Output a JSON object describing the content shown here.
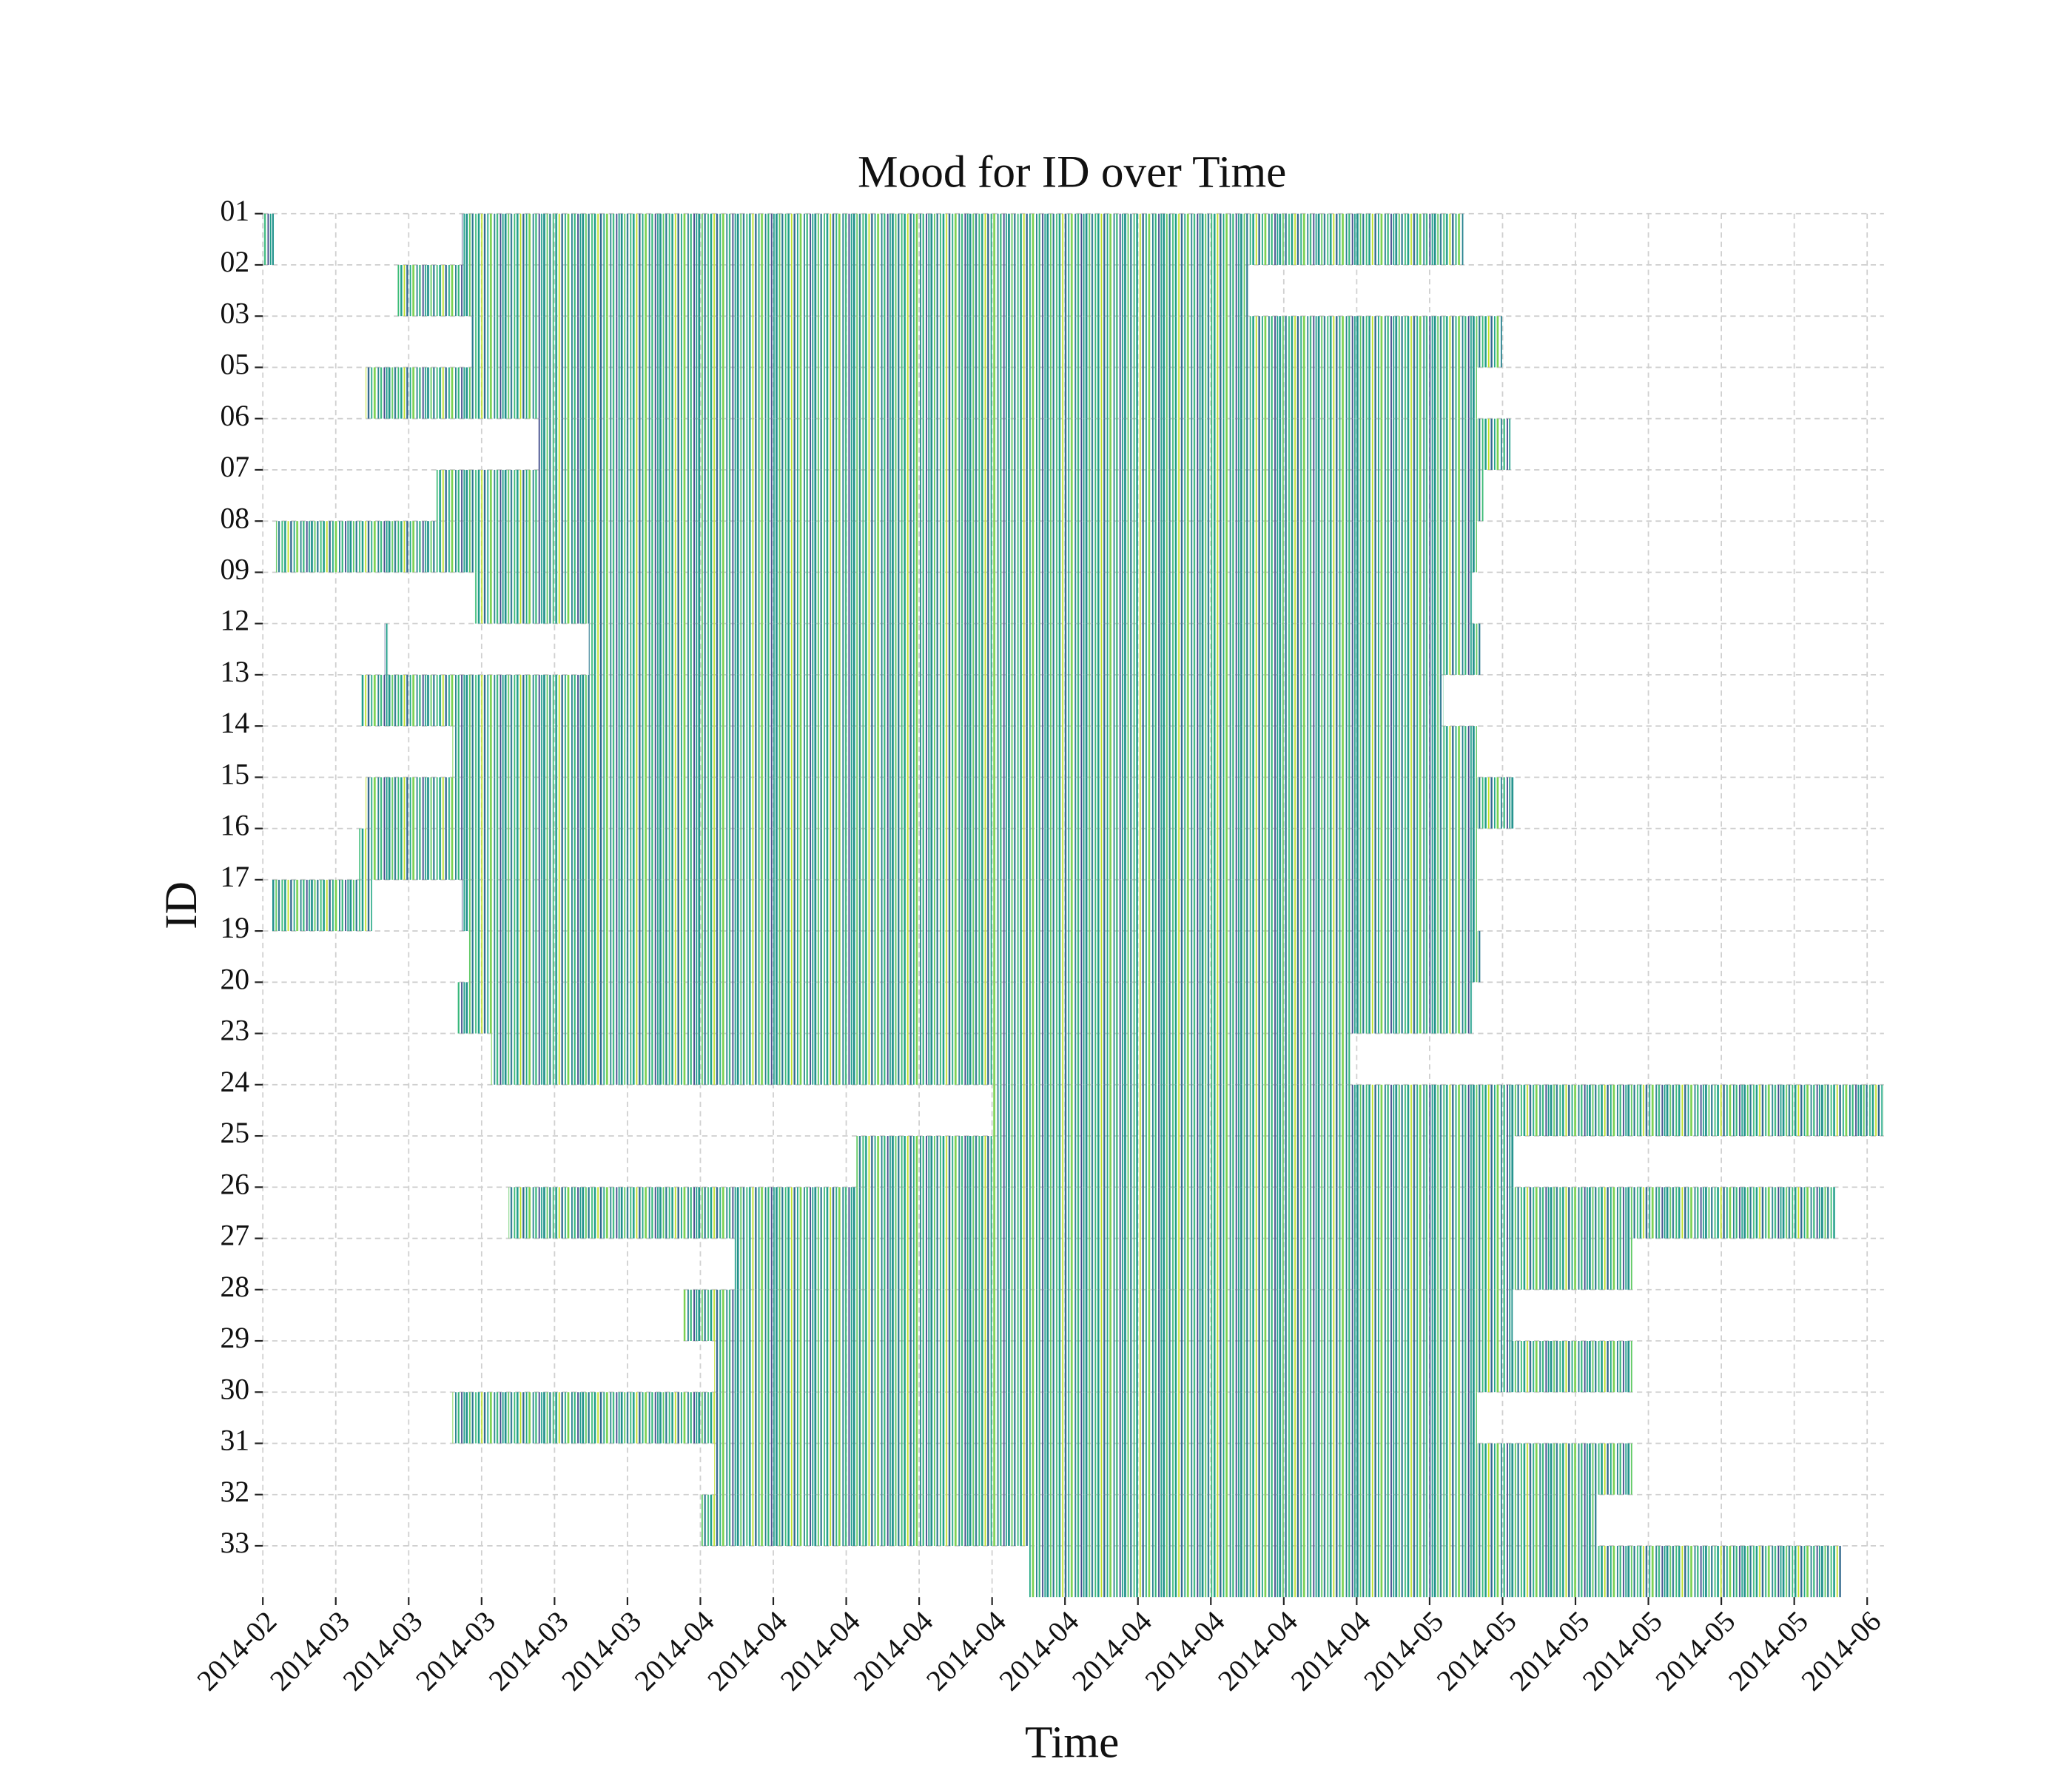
{
  "chart_data": {
    "type": "broken_barh",
    "title": "Mood for ID over Time",
    "xlabel": "Time",
    "ylabel": "ID",
    "grid": true,
    "colormap": "viridis",
    "xlim": [
      0,
      22.23
    ],
    "xticks": [
      {
        "value": 0,
        "label": "2014-02"
      },
      {
        "value": 1,
        "label": "2014-03"
      },
      {
        "value": 2,
        "label": "2014-03"
      },
      {
        "value": 3,
        "label": "2014-03"
      },
      {
        "value": 4,
        "label": "2014-03"
      },
      {
        "value": 5,
        "label": "2014-03"
      },
      {
        "value": 6,
        "label": "2014-04"
      },
      {
        "value": 7,
        "label": "2014-04"
      },
      {
        "value": 8,
        "label": "2014-04"
      },
      {
        "value": 9,
        "label": "2014-04"
      },
      {
        "value": 10,
        "label": "2014-04"
      },
      {
        "value": 11,
        "label": "2014-04"
      },
      {
        "value": 12,
        "label": "2014-04"
      },
      {
        "value": 13,
        "label": "2014-04"
      },
      {
        "value": 14,
        "label": "2014-04"
      },
      {
        "value": 15,
        "label": "2014-04"
      },
      {
        "value": 16,
        "label": "2014-05"
      },
      {
        "value": 17,
        "label": "2014-05"
      },
      {
        "value": 18,
        "label": "2014-05"
      },
      {
        "value": 19,
        "label": "2014-05"
      },
      {
        "value": 20,
        "label": "2014-05"
      },
      {
        "value": 21,
        "label": "2014-05"
      },
      {
        "value": 22,
        "label": "2014-06"
      }
    ],
    "series": [
      {
        "name": "01",
        "ranges": [
          [
            0,
            0.15
          ],
          [
            2.73,
            16.47
          ]
        ]
      },
      {
        "name": "02",
        "ranges": [
          [
            1.83,
            13.53
          ]
        ]
      },
      {
        "name": "03",
        "ranges": [
          [
            2.86,
            17.01
          ]
        ]
      },
      {
        "name": "05",
        "ranges": [
          [
            1.41,
            16.65
          ]
        ]
      },
      {
        "name": "06",
        "ranges": [
          [
            3.77,
            17.11
          ]
        ]
      },
      {
        "name": "07",
        "ranges": [
          [
            2.38,
            16.74
          ]
        ]
      },
      {
        "name": "08",
        "ranges": [
          [
            0.18,
            16.65
          ]
        ]
      },
      {
        "name": "09",
        "ranges": [
          [
            2.89,
            16.59
          ]
        ]
      },
      {
        "name": "12",
        "ranges": [
          [
            1.67,
            1.72
          ],
          [
            4.47,
            16.7
          ]
        ]
      },
      {
        "name": "13",
        "ranges": [
          [
            1.34,
            16.19
          ]
        ]
      },
      {
        "name": "14",
        "ranges": [
          [
            2.6,
            16.65
          ]
        ]
      },
      {
        "name": "15",
        "ranges": [
          [
            1.41,
            17.16
          ]
        ]
      },
      {
        "name": "16",
        "ranges": [
          [
            1.32,
            16.65
          ]
        ]
      },
      {
        "name": "17",
        "ranges": [
          [
            0.13,
            1.5
          ],
          [
            2.73,
            16.65
          ]
        ]
      },
      {
        "name": "19",
        "ranges": [
          [
            2.82,
            16.7
          ]
        ]
      },
      {
        "name": "20",
        "ranges": [
          [
            2.67,
            16.59
          ]
        ]
      },
      {
        "name": "23",
        "ranges": [
          [
            3.13,
            14.91
          ]
        ]
      },
      {
        "name": "24",
        "ranges": [
          [
            10.0,
            22.23
          ]
        ]
      },
      {
        "name": "25",
        "ranges": [
          [
            8.13,
            17.16
          ]
        ]
      },
      {
        "name": "26",
        "ranges": [
          [
            3.37,
            21.56
          ]
        ]
      },
      {
        "name": "27",
        "ranges": [
          [
            6.47,
            18.79
          ]
        ]
      },
      {
        "name": "28",
        "ranges": [
          [
            5.77,
            17.14
          ]
        ]
      },
      {
        "name": "29",
        "ranges": [
          [
            6.19,
            18.79
          ]
        ]
      },
      {
        "name": "30",
        "ranges": [
          [
            2.6,
            16.65
          ]
        ]
      },
      {
        "name": "31",
        "ranges": [
          [
            6.19,
            18.79
          ]
        ]
      },
      {
        "name": "32",
        "ranges": [
          [
            6.01,
            18.3
          ]
        ]
      },
      {
        "name": "33",
        "ranges": [
          [
            10.51,
            21.65
          ]
        ]
      }
    ]
  }
}
